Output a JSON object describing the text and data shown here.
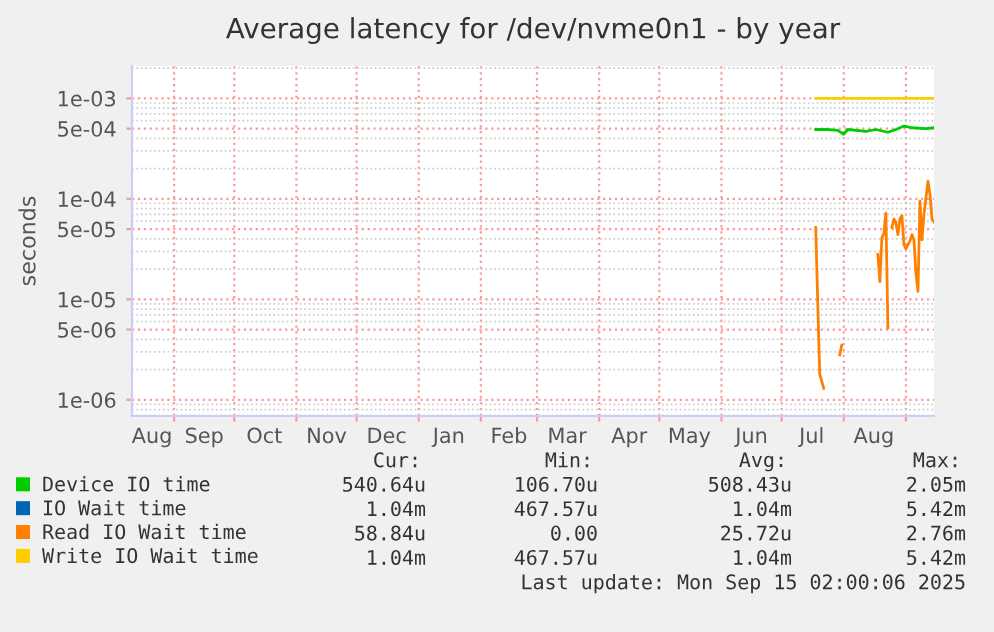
{
  "chart_data": {
    "type": "line",
    "title": "Average latency for /dev/nvme0n1 - by year",
    "ylabel": "seconds",
    "log": "y",
    "grid": true,
    "legend": "bottom left",
    "marker": "none",
    "line_style": "solid",
    "xlim": [
      "2024-08-11",
      "2025-09-15"
    ],
    "xticks": [
      {
        "value": "2024-09-01",
        "label": null
      },
      {
        "value": "2024-10-01",
        "label": null
      },
      {
        "value": "2024-11-01",
        "label": null
      },
      {
        "value": "2024-12-01",
        "label": null
      },
      {
        "value": "2025-01-01",
        "label": null
      },
      {
        "value": "2025-02-01",
        "label": null
      },
      {
        "value": "2025-03-01",
        "label": null
      },
      {
        "value": "2025-04-01",
        "label": null
      },
      {
        "value": "2025-05-01",
        "label": null
      },
      {
        "value": "2025-06-01",
        "label": null
      },
      {
        "value": "2025-07-01",
        "label": null
      },
      {
        "value": "2025-08-01",
        "label": null
      },
      {
        "value": "2025-09-01",
        "label": null
      },
      {
        "value": "2024-08-21",
        "label": "Aug"
      },
      {
        "value": "2024-09-16",
        "label": "Sep"
      },
      {
        "value": "2024-10-16",
        "label": "Oct"
      },
      {
        "value": "2024-11-16",
        "label": "Nov"
      },
      {
        "value": "2024-12-16",
        "label": "Dec"
      },
      {
        "value": "2025-01-16",
        "label": "Jan"
      },
      {
        "value": "2025-02-15",
        "label": "Feb"
      },
      {
        "value": "2025-03-16",
        "label": "Mar"
      },
      {
        "value": "2025-04-16",
        "label": "Apr"
      },
      {
        "value": "2025-05-16",
        "label": "May"
      },
      {
        "value": "2025-06-16",
        "label": "Jun"
      },
      {
        "value": "2025-07-16",
        "label": "Jul"
      },
      {
        "value": "2025-08-16",
        "label": "Aug"
      }
    ],
    "ylim": [
      6.9e-07,
      0.0021
    ],
    "yticks": [
      {
        "value": 1e-06,
        "label": "1e-06"
      },
      {
        "value": 5e-06,
        "label": "5e-06"
      },
      {
        "value": 1e-05,
        "label": "1e-05"
      },
      {
        "value": 5e-05,
        "label": "5e-05"
      },
      {
        "value": 0.0001,
        "label": "1e-04"
      },
      {
        "value": 0.0005,
        "label": "5e-04"
      },
      {
        "value": 0.001,
        "label": "1e-03"
      }
    ],
    "series": [
      {
        "name": "Device IO time",
        "color": "#00cc00",
        "x": [
          "2025-07-18",
          "2025-07-24",
          "2025-07-29",
          "2025-08-01",
          "2025-08-03",
          "2025-08-12",
          "2025-08-17",
          "2025-08-23",
          "2025-08-27",
          "2025-08-31",
          "2025-09-04",
          "2025-09-11",
          "2025-09-15"
        ],
        "values": [
          0.00049,
          0.00049,
          0.00048,
          0.00044,
          0.00049,
          0.00047,
          0.00049,
          0.00046,
          0.00049,
          0.00053,
          0.00051,
          0.0005,
          0.00051
        ]
      },
      {
        "name": "IO Wait time",
        "color": "#0066b3"
      },
      {
        "name": "Read IO Wait time",
        "color": "#ff8000",
        "x": [
          "2025-07-18",
          "2025-07-20",
          "2025-07-22",
          "2025-07-23",
          "2025-07-30",
          "2025-07-31",
          "2025-08-01",
          "2025-08-18",
          "2025-08-19",
          "2025-08-20",
          "2025-08-21",
          "2025-08-22",
          "2025-08-23",
          "2025-08-24",
          "2025-08-25",
          "2025-08-26",
          "2025-08-27",
          "2025-08-28",
          "2025-08-29",
          "2025-08-30",
          "2025-08-31",
          "2025-09-01",
          "2025-09-03",
          "2025-09-04",
          "2025-09-05",
          "2025-09-06",
          "2025-09-07",
          "2025-09-08",
          "2025-09-09",
          "2025-09-10",
          "2025-09-12",
          "2025-09-13",
          "2025-09-14",
          "2025-09-15"
        ],
        "values": [
          5.2e-05,
          1.8e-06,
          1.3e-06,
          null,
          2.8e-06,
          3.5e-06,
          null,
          2.8e-05,
          1.5e-05,
          4.1e-05,
          4.5e-05,
          7.2e-05,
          5.2e-06,
          null,
          5.2e-05,
          6.3e-05,
          5.8e-05,
          4.4e-05,
          6.3e-05,
          6.8e-05,
          3.5e-05,
          3.2e-05,
          3.8e-05,
          4.4e-05,
          3.9e-05,
          1.8e-05,
          1.2e-05,
          9.5e-05,
          3.9e-05,
          7e-05,
          0.00015,
          0.00011,
          6.3e-05,
          5.9e-05
        ]
      },
      {
        "name": "Write IO Wait time",
        "color": "#ffcc00",
        "x": [
          "2025-07-18",
          "2025-07-28",
          "2025-08-08",
          "2025-08-20",
          "2025-09-01",
          "2025-09-15"
        ],
        "values": [
          0.001,
          0.001,
          0.001,
          0.001,
          0.001,
          0.001
        ]
      }
    ],
    "annotations": [
      "Cur:",
      "Min:",
      "Avg:",
      "Max:",
      "540.64u",
      "106.70u",
      "508.43u",
      "2.05m",
      "1.04m",
      "467.57u",
      "1.04m",
      "5.42m",
      "58.84u",
      "0.00",
      "25.72u",
      "2.76m",
      "1.04m",
      "467.57u",
      "1.04m",
      "5.42m",
      "Last update: Mon Sep 15 02:00:06 2025"
    ]
  }
}
